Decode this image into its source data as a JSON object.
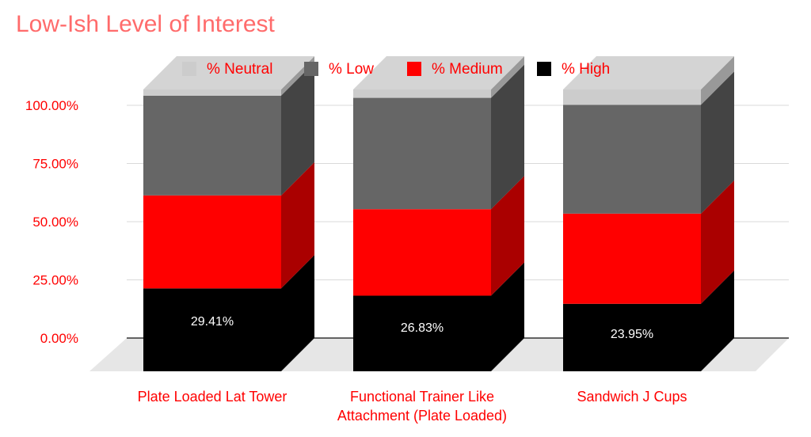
{
  "chart_data": {
    "type": "bar",
    "stacked": true,
    "three_d": true,
    "title": "Low-Ish Level of Interest",
    "categories": [
      [
        "Plate Loaded Lat Tower"
      ],
      [
        "Functional Trainer Like",
        "Attachment (Plate Loaded)"
      ],
      [
        "Sandwich J Cups"
      ]
    ],
    "series": [
      {
        "name": "% High",
        "color": "#000000",
        "side": "#000000",
        "values": [
          29.41,
          26.83,
          23.95
        ]
      },
      {
        "name": "% Medium",
        "color": "#ff0000",
        "side": "#aa0000",
        "values": [
          33.0,
          30.7,
          32.0
        ]
      },
      {
        "name": "% Low",
        "color": "#666666",
        "side": "#444444",
        "values": [
          35.4,
          39.5,
          38.6
        ]
      },
      {
        "name": "% Neutral",
        "color": "#cccccc",
        "side": "#999999",
        "values": [
          2.19,
          2.97,
          5.45
        ]
      }
    ],
    "legend_order": [
      "% Neutral",
      "% Low",
      "% Medium",
      "% High"
    ],
    "data_labels": [
      "29.41%",
      "26.83%",
      "23.95%"
    ],
    "yticks": [
      "0.00%",
      "25.00%",
      "50.00%",
      "75.00%",
      "100.00%"
    ],
    "ylim": [
      0,
      100
    ],
    "legend_position": "top",
    "grid": true,
    "title_color": "#ff6b6b",
    "label_color": "#ff0000"
  }
}
